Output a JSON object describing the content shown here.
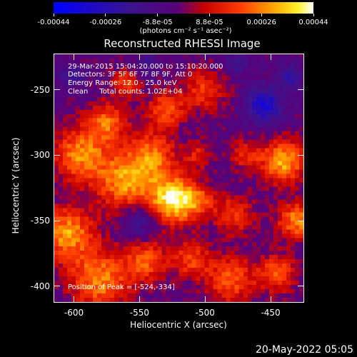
{
  "chart_data": {
    "type": "heatmap",
    "title": "Reconstructed RHESSI Image",
    "xlabel": "Heliocentric X (arcsec)",
    "ylabel": "Heliocentric Y (arcsec)",
    "xlim": [
      -615,
      -425
    ],
    "ylim": [
      -412,
      -223
    ],
    "xticks": [
      "-600",
      "-550",
      "-500",
      "-450"
    ],
    "xtick_values": [
      -600,
      -550,
      -500,
      -450
    ],
    "yticks": [
      "-250",
      "-300",
      "-350",
      "-400"
    ],
    "ytick_values": [
      -250,
      -300,
      -350,
      -400
    ],
    "colorbar": {
      "ticks": [
        "-0.00044",
        "-0.00026",
        "-8.8e-05",
        "8.8e-05",
        "0.00026",
        "0.00044"
      ],
      "range": [
        -0.00044,
        0.00044
      ],
      "unit": "(photons cm⁻² s⁻¹ asec⁻²)"
    },
    "annotations": {
      "time": "29-Mar-2015 15:04:20.000 to 15:10:20.000",
      "detectors": "Detectors: 3F 5F 6F 7F 8F 9F, Att 0",
      "energy": "Energy Range: 12.0 - 25.0 keV",
      "method": "Clean     Total counts: 1.02E+04",
      "peak": "Position of Peak = [-524,-334]"
    },
    "peak_position": [
      -524,
      -334
    ],
    "grid": false
  },
  "footer": "20-May-2022 05:05"
}
